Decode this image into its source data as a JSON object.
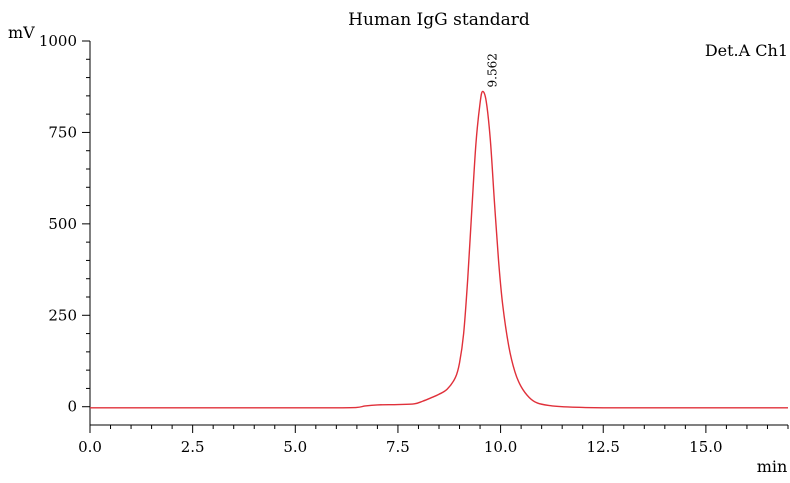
{
  "chart_data": {
    "type": "line",
    "title": "Human IgG standard",
    "xlabel": "min",
    "ylabel": "mV",
    "channel_label": "Det.A Ch1",
    "xlim": [
      0,
      17
    ],
    "ylim": [
      -50,
      1000
    ],
    "x_ticks": [
      0.0,
      2.5,
      5.0,
      7.5,
      10.0,
      12.5,
      15.0
    ],
    "x_tick_labels": [
      "0.0",
      "2.5",
      "5.0",
      "7.5",
      "10.0",
      "12.5",
      "15.0"
    ],
    "y_ticks": [
      0,
      250,
      500,
      750,
      1000
    ],
    "y_tick_labels": [
      "0",
      "250",
      "500",
      "750",
      "1000"
    ],
    "series_color": "#e0303a",
    "series": [
      {
        "x": [
          0,
          1,
          2,
          3,
          4,
          5,
          6,
          6.5,
          6.7,
          7.0,
          7.5,
          7.9,
          8.1,
          8.3,
          8.5,
          8.7,
          8.9,
          9.0,
          9.1,
          9.2,
          9.3,
          9.4,
          9.5,
          9.562,
          9.65,
          9.75,
          9.85,
          9.95,
          10.05,
          10.2,
          10.35,
          10.5,
          10.7,
          10.9,
          11.2,
          11.5,
          12.0,
          12.5,
          13,
          14,
          15,
          16,
          17
        ],
        "values": [
          -3,
          -3,
          -3,
          -3,
          -3,
          -3,
          -3,
          -2,
          2,
          5,
          6,
          8,
          15,
          24,
          34,
          48,
          80,
          120,
          200,
          350,
          540,
          720,
          830,
          862,
          835,
          730,
          560,
          400,
          280,
          165,
          95,
          55,
          25,
          10,
          3,
          0,
          -2,
          -3,
          -3,
          -3,
          -3,
          -3,
          -3
        ]
      }
    ],
    "annotations": [
      {
        "text": "9.562",
        "x": 9.562,
        "y": 862
      }
    ],
    "grid": false,
    "legend": "none"
  }
}
